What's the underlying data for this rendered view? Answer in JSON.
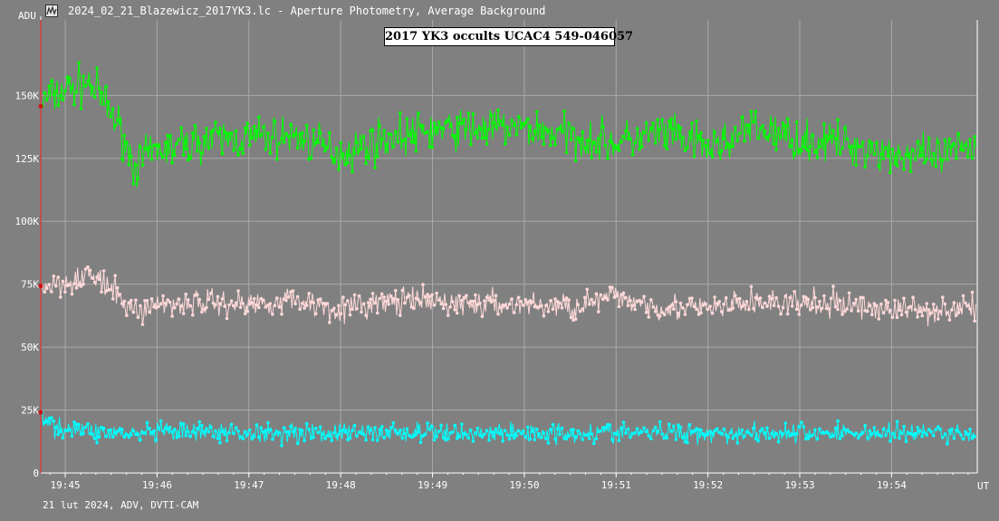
{
  "window": {
    "title": "2024_02_21_Blazewicz_2017YK3.lc - Aperture Photometry, Average Background",
    "icon": "lightcurve-app-icon"
  },
  "footer": {
    "info": "21 lut 2024, ADV, DVTI-CAM"
  },
  "colors": {
    "background": "#808080",
    "grid": "#a8a8a8",
    "cursor": "#ff2020",
    "target": "#00ff00",
    "comparison": "#ffd8d8",
    "third": "#00ffff"
  },
  "chart_data": {
    "type": "line",
    "title": "2017 YK3 occults UCAC4 549-046057",
    "ylabel": "ADU",
    "xlabel": "UT",
    "ylim": [
      0,
      180000
    ],
    "xlim": [
      "19:44:44",
      "19:54:56"
    ],
    "grid": true,
    "y_ticks": [
      {
        "value": 0,
        "label": "0"
      },
      {
        "value": 25000,
        "label": "25K"
      },
      {
        "value": 50000,
        "label": "50K"
      },
      {
        "value": 75000,
        "label": "75K"
      },
      {
        "value": 100000,
        "label": "100K"
      },
      {
        "value": 125000,
        "label": "125K"
      },
      {
        "value": 150000,
        "label": "150K"
      }
    ],
    "x_ticks": [
      "19:45",
      "19:46",
      "19:47",
      "19:48",
      "19:49",
      "19:50",
      "19:51",
      "19:52",
      "19:53",
      "19:54"
    ],
    "cursor_time": "19:44:44",
    "series": [
      {
        "color": "#00ff00",
        "x": [
          "19:44:45",
          "19:45:00",
          "19:45:15",
          "19:45:25",
          "19:45:35",
          "19:45:45",
          "19:46:00",
          "19:46:30",
          "19:47:00",
          "19:47:30",
          "19:48:00",
          "19:48:30",
          "19:49:00",
          "19:49:30",
          "19:50:00",
          "19:50:30",
          "19:51:00",
          "19:51:30",
          "19:52:00",
          "19:52:30",
          "19:53:00",
          "19:53:30",
          "19:54:00",
          "19:54:30",
          "19:54:55"
        ],
        "values": [
          148000,
          152000,
          155000,
          148000,
          138000,
          122000,
          128000,
          132000,
          133000,
          134000,
          127000,
          133000,
          136000,
          137000,
          137000,
          134000,
          131000,
          135000,
          129000,
          137000,
          132000,
          131000,
          127000,
          125000,
          131000
        ],
        "spread": 9000
      },
      {
        "color": "#ffd8d8",
        "x": [
          "19:44:45",
          "19:45:00",
          "19:45:15",
          "19:45:25",
          "19:45:35",
          "19:45:45",
          "19:46:00",
          "19:46:30",
          "19:47:00",
          "19:47:30",
          "19:48:00",
          "19:48:30",
          "19:49:00",
          "19:49:30",
          "19:50:00",
          "19:50:30",
          "19:51:00",
          "19:51:30",
          "19:52:00",
          "19:52:30",
          "19:53:00",
          "19:53:30",
          "19:54:00",
          "19:54:30",
          "19:54:55"
        ],
        "values": [
          74000,
          76000,
          79000,
          75000,
          70000,
          64000,
          67000,
          68000,
          67000,
          69000,
          65000,
          68000,
          68000,
          67000,
          67000,
          66000,
          70000,
          66000,
          65000,
          68000,
          67000,
          67000,
          65000,
          65000,
          66000
        ],
        "spread": 6000
      },
      {
        "color": "#00ffff",
        "x": [
          "19:44:45",
          "19:45:00",
          "19:45:15",
          "19:45:25",
          "19:45:35",
          "19:45:45",
          "19:46:00",
          "19:46:30",
          "19:47:00",
          "19:47:30",
          "19:48:00",
          "19:48:30",
          "19:49:00",
          "19:49:30",
          "19:50:00",
          "19:50:30",
          "19:51:00",
          "19:51:30",
          "19:52:00",
          "19:52:30",
          "19:53:00",
          "19:53:30",
          "19:54:00",
          "19:54:30",
          "19:54:55"
        ],
        "values": [
          20000,
          18000,
          17000,
          16000,
          16000,
          15000,
          16000,
          16000,
          16000,
          16000,
          16000,
          16000,
          16000,
          16000,
          16000,
          16000,
          16000,
          16000,
          16000,
          16000,
          16000,
          16000,
          16000,
          16000,
          15000
        ],
        "spread": 4500
      }
    ]
  }
}
